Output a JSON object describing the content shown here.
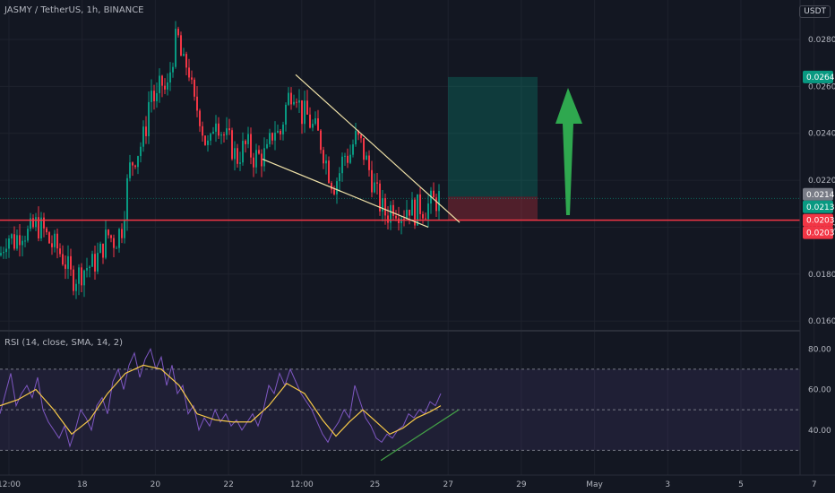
{
  "header": {
    "symbol_line": "JASMY / TetherUS, 1h, BINANCE",
    "currency": "USDT"
  },
  "rsi_legend": "RSI (14, close, SMA, 14, 2)",
  "chart_data": {
    "type": "candlestick",
    "price_axis": {
      "range": [
        0.0157,
        0.0293
      ],
      "ticks": [
        "0.0160",
        "0.0180",
        "0.0200",
        "0.0220",
        "0.0240",
        "0.0260",
        "0.0280"
      ]
    },
    "rsi_axis": {
      "range": [
        20,
        85
      ],
      "ticks": [
        "40.00",
        "60.00",
        "80.00"
      ],
      "bands": [
        30,
        50,
        70
      ]
    },
    "time_axis": {
      "labels": [
        "12:00",
        "18",
        "20",
        "22",
        "12:00",
        "25",
        "27",
        "29",
        "May",
        "3",
        "5",
        "7"
      ]
    },
    "price_tags": [
      {
        "label": "0.0264",
        "value": 0.0264,
        "color": "#089981"
      },
      {
        "label": "0.0214",
        "value": 0.0214,
        "color": "#787b86"
      },
      {
        "label": "0.0213",
        "value": 0.0213,
        "color": "#089981"
      },
      {
        "label": "0.0203",
        "value": 0.0203,
        "color": "#f23645"
      },
      {
        "label": "0.0203",
        "value": 0.0201,
        "color": "#f23645"
      }
    ],
    "horizontal_line": {
      "value": 0.0203,
      "color": "#f23645"
    },
    "position": {
      "entry": 0.0213,
      "target": 0.0264,
      "stop": 0.0203
    },
    "colors": {
      "up": "#089981",
      "down": "#f23645",
      "rsi": "#7e57c2",
      "rsi_sma": "#f7c948",
      "arrow": "#2fa84f",
      "wedge": "#f0e2a8",
      "trend": "#43a047"
    },
    "price_path": [
      [
        0,
        0.0188
      ],
      [
        8,
        0.0197
      ],
      [
        16,
        0.0194
      ],
      [
        24,
        0.0199
      ],
      [
        32,
        0.0197
      ],
      [
        40,
        0.0201
      ],
      [
        48,
        0.0199
      ],
      [
        56,
        0.0193
      ],
      [
        64,
        0.0191
      ],
      [
        72,
        0.0186
      ],
      [
        80,
        0.0178
      ],
      [
        88,
        0.018
      ],
      [
        96,
        0.0183
      ],
      [
        104,
        0.0184
      ],
      [
        112,
        0.0189
      ],
      [
        120,
        0.0197
      ],
      [
        128,
        0.0194
      ],
      [
        136,
        0.02
      ],
      [
        144,
        0.0224
      ],
      [
        150,
        0.023
      ],
      [
        156,
        0.0234
      ],
      [
        162,
        0.024
      ],
      [
        168,
        0.026
      ],
      [
        174,
        0.0252
      ],
      [
        180,
        0.0262
      ],
      [
        186,
        0.0256
      ],
      [
        192,
        0.0272
      ],
      [
        198,
        0.0282
      ],
      [
        204,
        0.0268
      ],
      [
        210,
        0.027
      ],
      [
        216,
        0.0252
      ],
      [
        222,
        0.025
      ],
      [
        228,
        0.0238
      ],
      [
        234,
        0.0232
      ],
      [
        240,
        0.025
      ],
      [
        246,
        0.0242
      ],
      [
        252,
        0.0238
      ],
      [
        258,
        0.0235
      ],
      [
        264,
        0.0229
      ],
      [
        270,
        0.0233
      ],
      [
        276,
        0.0235
      ],
      [
        282,
        0.023
      ],
      [
        290,
        0.023
      ],
      [
        298,
        0.0231
      ],
      [
        306,
        0.0243
      ],
      [
        312,
        0.0238
      ],
      [
        318,
        0.025
      ],
      [
        324,
        0.0258
      ],
      [
        330,
        0.026
      ],
      [
        336,
        0.0248
      ],
      [
        342,
        0.0248
      ],
      [
        348,
        0.0243
      ],
      [
        354,
        0.024
      ],
      [
        360,
        0.0234
      ],
      [
        366,
        0.0225
      ],
      [
        372,
        0.0218
      ],
      [
        378,
        0.0222
      ],
      [
        384,
        0.0231
      ],
      [
        390,
        0.023
      ],
      [
        396,
        0.0238
      ],
      [
        402,
        0.0236
      ],
      [
        408,
        0.0229
      ],
      [
        414,
        0.0222
      ],
      [
        420,
        0.0214
      ],
      [
        426,
        0.0208
      ],
      [
        432,
        0.0205
      ],
      [
        438,
        0.021
      ],
      [
        444,
        0.0208
      ],
      [
        450,
        0.0206
      ],
      [
        456,
        0.021
      ],
      [
        462,
        0.0206
      ],
      [
        468,
        0.0209
      ],
      [
        474,
        0.0208
      ],
      [
        480,
        0.021
      ],
      [
        486,
        0.0211
      ],
      [
        492,
        0.0213
      ]
    ],
    "rsi_path": [
      [
        0,
        48
      ],
      [
        6,
        58
      ],
      [
        12,
        68
      ],
      [
        18,
        52
      ],
      [
        24,
        58
      ],
      [
        30,
        62
      ],
      [
        36,
        56
      ],
      [
        42,
        66
      ],
      [
        48,
        50
      ],
      [
        54,
        44
      ],
      [
        60,
        40
      ],
      [
        66,
        36
      ],
      [
        72,
        42
      ],
      [
        78,
        32
      ],
      [
        84,
        40
      ],
      [
        90,
        50
      ],
      [
        96,
        46
      ],
      [
        102,
        40
      ],
      [
        108,
        52
      ],
      [
        114,
        56
      ],
      [
        120,
        48
      ],
      [
        126,
        64
      ],
      [
        132,
        70
      ],
      [
        138,
        60
      ],
      [
        144,
        72
      ],
      [
        150,
        78
      ],
      [
        156,
        66
      ],
      [
        162,
        75
      ],
      [
        168,
        80
      ],
      [
        174,
        70
      ],
      [
        180,
        76
      ],
      [
        186,
        62
      ],
      [
        192,
        72
      ],
      [
        198,
        58
      ],
      [
        204,
        62
      ],
      [
        210,
        48
      ],
      [
        216,
        52
      ],
      [
        222,
        40
      ],
      [
        228,
        46
      ],
      [
        234,
        42
      ],
      [
        240,
        50
      ],
      [
        246,
        44
      ],
      [
        252,
        48
      ],
      [
        258,
        42
      ],
      [
        264,
        45
      ],
      [
        270,
        40
      ],
      [
        276,
        44
      ],
      [
        282,
        48
      ],
      [
        288,
        42
      ],
      [
        294,
        50
      ],
      [
        300,
        62
      ],
      [
        306,
        58
      ],
      [
        312,
        68
      ],
      [
        318,
        62
      ],
      [
        324,
        70
      ],
      [
        330,
        64
      ],
      [
        336,
        58
      ],
      [
        342,
        54
      ],
      [
        348,
        50
      ],
      [
        354,
        44
      ],
      [
        360,
        38
      ],
      [
        366,
        34
      ],
      [
        372,
        40
      ],
      [
        378,
        44
      ],
      [
        384,
        50
      ],
      [
        390,
        46
      ],
      [
        396,
        62
      ],
      [
        402,
        54
      ],
      [
        408,
        46
      ],
      [
        414,
        42
      ],
      [
        420,
        36
      ],
      [
        426,
        34
      ],
      [
        432,
        38
      ],
      [
        438,
        36
      ],
      [
        444,
        40
      ],
      [
        450,
        42
      ],
      [
        456,
        48
      ],
      [
        462,
        46
      ],
      [
        468,
        50
      ],
      [
        474,
        48
      ],
      [
        480,
        54
      ],
      [
        486,
        52
      ],
      [
        492,
        58
      ]
    ],
    "rsi_sma_path": [
      [
        0,
        52
      ],
      [
        20,
        55
      ],
      [
        40,
        60
      ],
      [
        60,
        50
      ],
      [
        80,
        38
      ],
      [
        100,
        45
      ],
      [
        120,
        58
      ],
      [
        140,
        68
      ],
      [
        160,
        72
      ],
      [
        180,
        70
      ],
      [
        200,
        62
      ],
      [
        220,
        48
      ],
      [
        240,
        45
      ],
      [
        260,
        44
      ],
      [
        280,
        44
      ],
      [
        300,
        52
      ],
      [
        320,
        63
      ],
      [
        340,
        58
      ],
      [
        360,
        45
      ],
      [
        375,
        37
      ],
      [
        390,
        44
      ],
      [
        405,
        50
      ],
      [
        420,
        44
      ],
      [
        435,
        38
      ],
      [
        450,
        41
      ],
      [
        465,
        46
      ],
      [
        480,
        49
      ],
      [
        492,
        52
      ]
    ]
  }
}
